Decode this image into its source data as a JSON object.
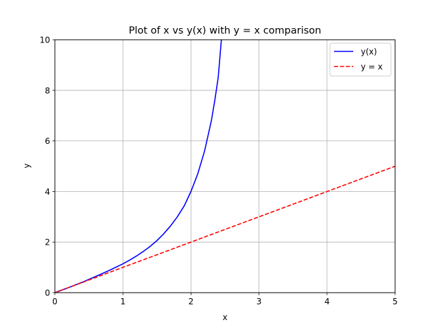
{
  "chart_data": {
    "type": "line",
    "title": "Plot of x vs y(x) with y = x comparison",
    "xlabel": "x",
    "ylabel": "y",
    "xlim": [
      0,
      5
    ],
    "ylim": [
      0,
      10
    ],
    "x_ticks": [
      "0",
      "1",
      "2",
      "3",
      "4",
      "5"
    ],
    "y_ticks": [
      "0",
      "2",
      "4",
      "6",
      "8",
      "10"
    ],
    "grid": true,
    "legend_position": "top-right",
    "series": [
      {
        "name": "y(x)",
        "color": "#0000ff",
        "style": "solid",
        "x": [
          0,
          0.2,
          0.4,
          0.6,
          0.8,
          1.0,
          1.1,
          1.2,
          1.3,
          1.4,
          1.5,
          1.6,
          1.7,
          1.8,
          1.9,
          2.0,
          2.1,
          2.2,
          2.3,
          2.35,
          2.4,
          2.45,
          2.5
        ],
        "y": [
          0,
          0.2,
          0.41,
          0.64,
          0.88,
          1.14,
          1.29,
          1.45,
          1.63,
          1.83,
          2.06,
          2.33,
          2.64,
          3.0,
          3.43,
          4.0,
          4.7,
          5.6,
          6.8,
          7.6,
          8.5,
          10.1,
          12.0
        ]
      },
      {
        "name": "y = x",
        "color": "#ff0000",
        "style": "dashed",
        "x": [
          0,
          5
        ],
        "y": [
          0,
          5
        ]
      }
    ]
  }
}
